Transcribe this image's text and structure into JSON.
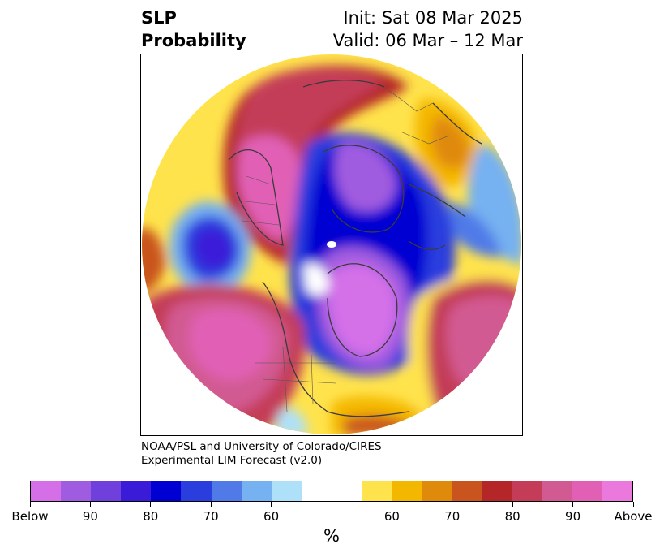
{
  "title": {
    "left_line1": "SLP",
    "left_line2": "Probability",
    "right_line1": "Init: Sat 08 Mar 2025",
    "right_line2": "Valid: 06 Mar – 12 Mar"
  },
  "credit": {
    "line1": "NOAA/PSL and University of Colorado/CIRES",
    "line2": "Experimental LIM Forecast (v2.0)"
  },
  "colorbar": {
    "unit": "%",
    "tick_labels": [
      "Below",
      "90",
      "80",
      "70",
      "60",
      "60",
      "70",
      "80",
      "90",
      "Above"
    ],
    "colors": [
      "#d46fe8",
      "#a05ce0",
      "#7040dc",
      "#3a1cd8",
      "#0000d2",
      "#2a3ede",
      "#4f7ae8",
      "#76b1f1",
      "#aee0fa",
      "#ffffff",
      "#ffffff",
      "#ffe34c",
      "#f4b700",
      "#e08a0c",
      "#c9541e",
      "#b42628",
      "#c43c58",
      "#d25a92",
      "#e160b6",
      "#ea78dd"
    ]
  },
  "map": {
    "projection": "north polar stereographic",
    "variable": "sea level pressure tercile probability"
  }
}
